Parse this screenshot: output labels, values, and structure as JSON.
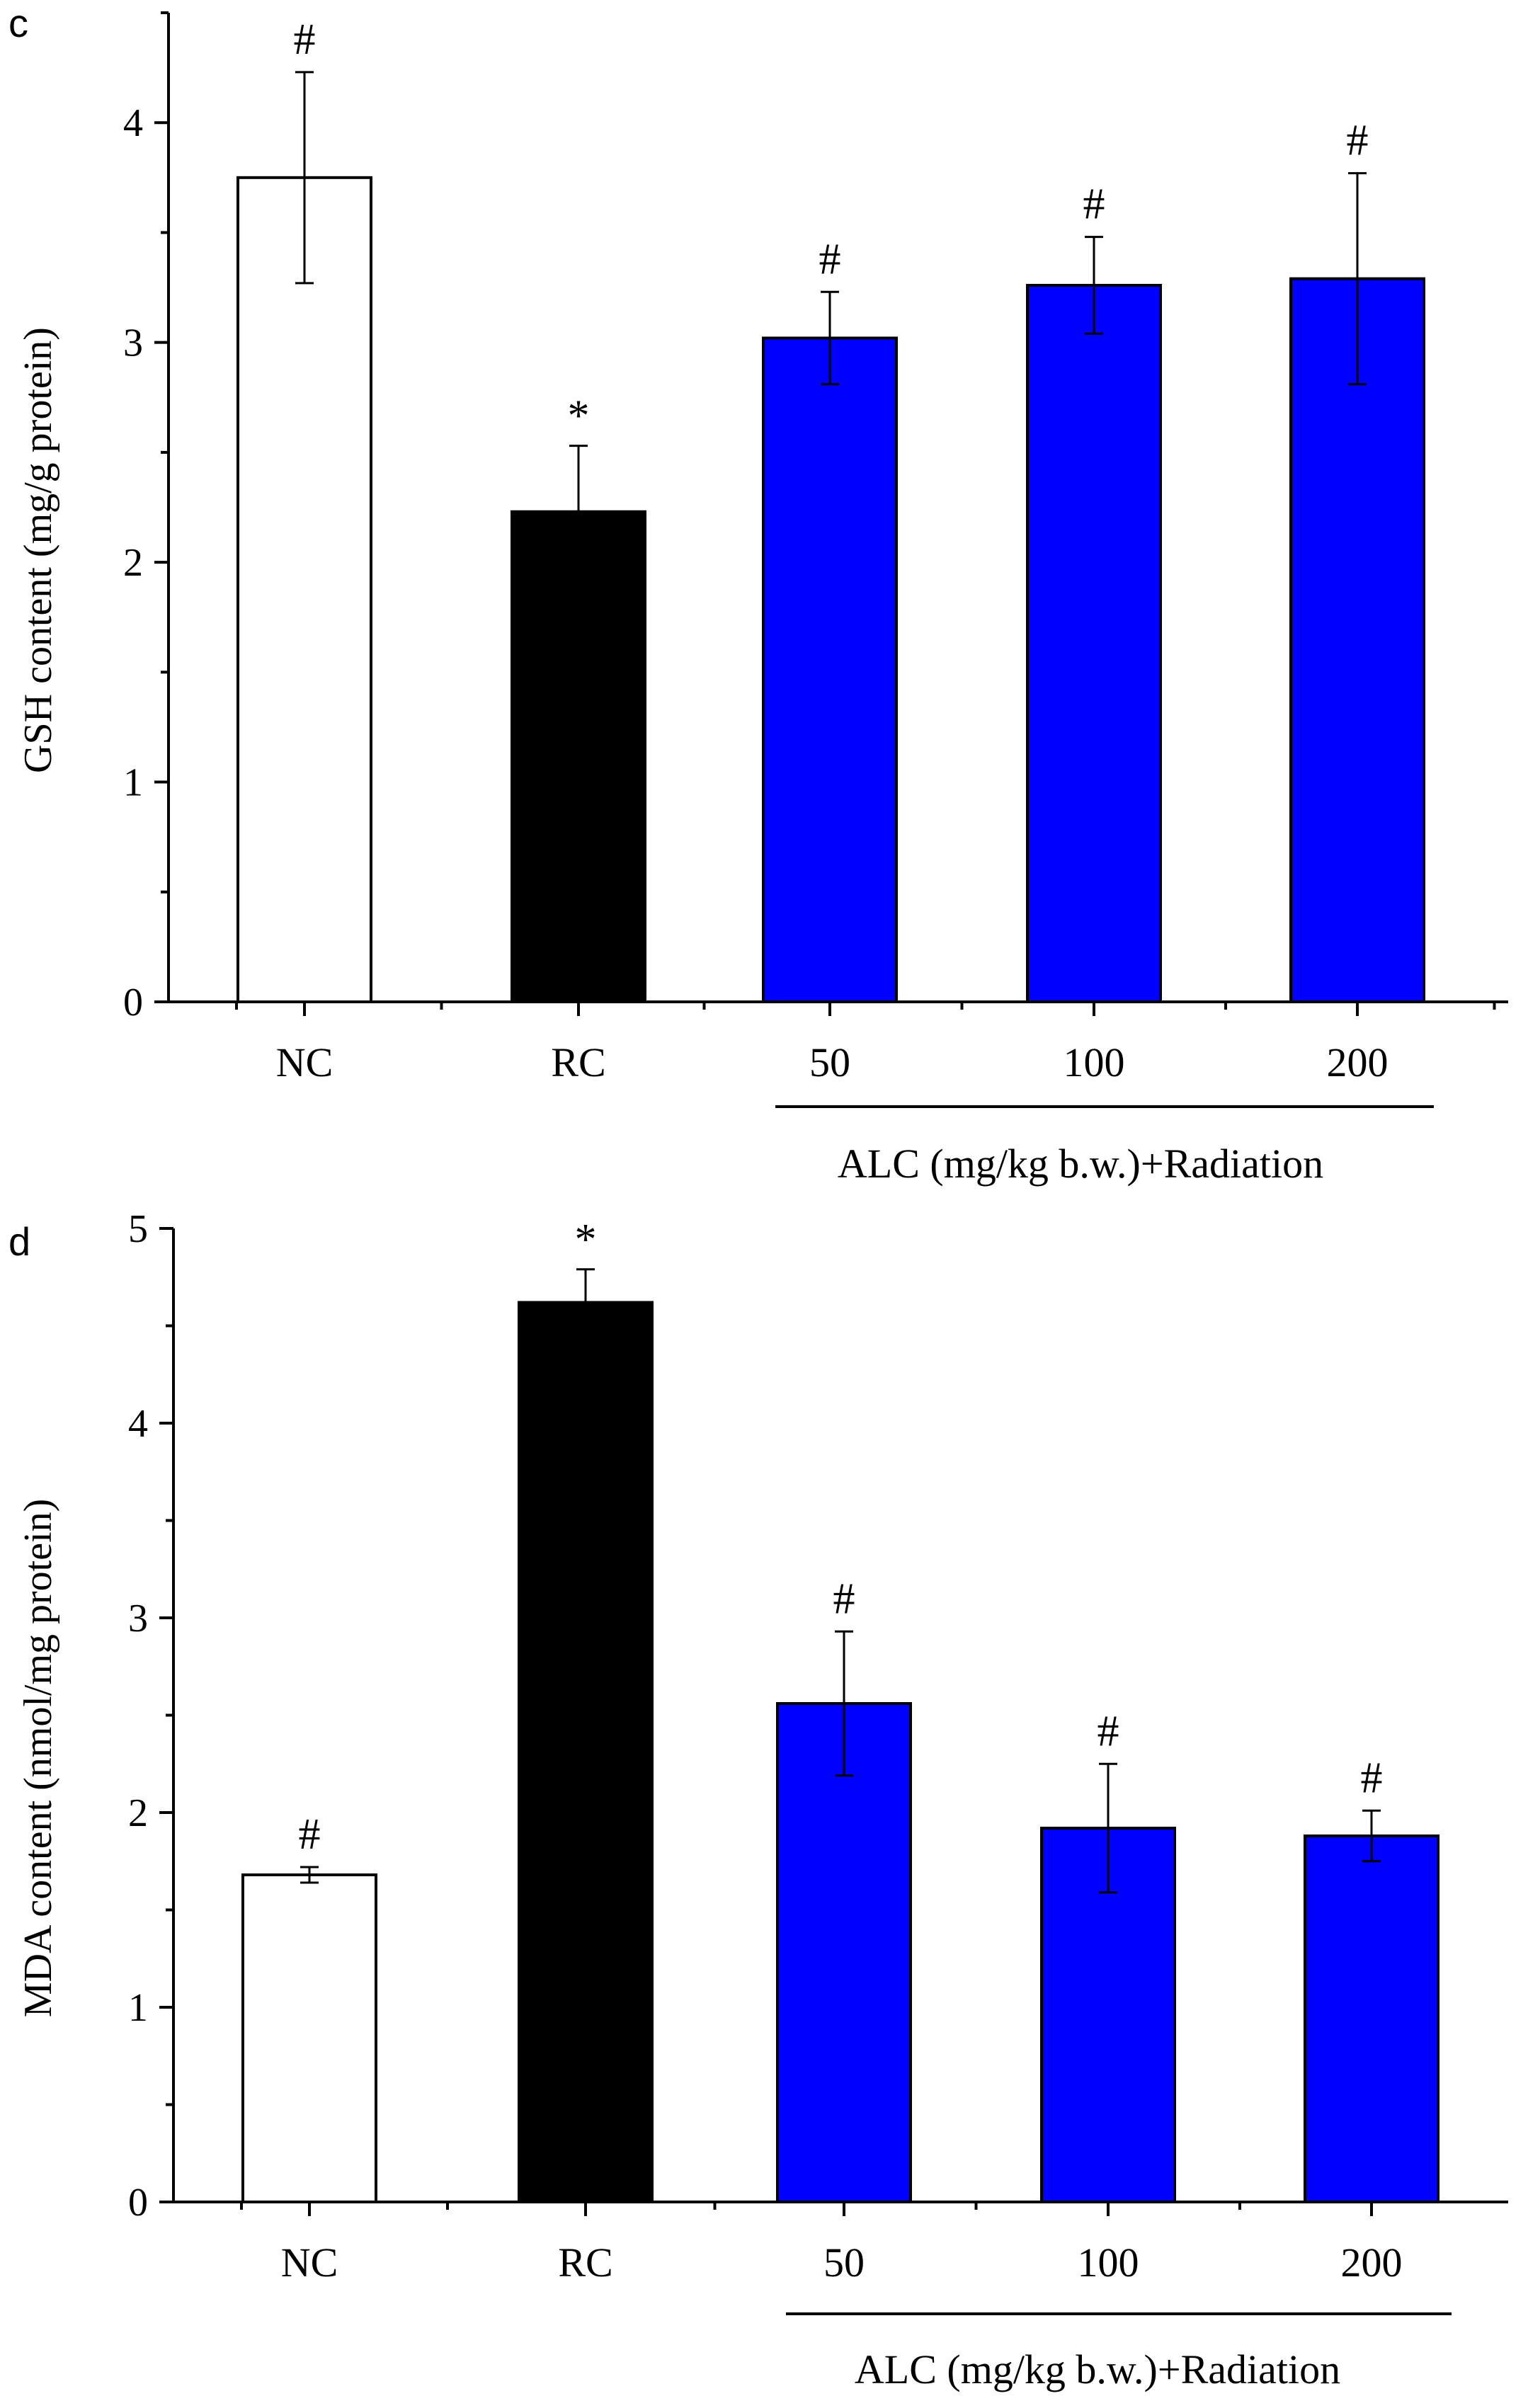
{
  "chart_data": [
    {
      "panel": "c",
      "type": "bar",
      "categories": [
        "NC",
        "RC",
        "50",
        "100",
        "200"
      ],
      "values": [
        3.75,
        2.23,
        3.02,
        3.26,
        3.29
      ],
      "errors": [
        0.48,
        0.3,
        0.21,
        0.22,
        0.48
      ],
      "annotations": [
        "#",
        "*",
        "#",
        "#",
        "#"
      ],
      "bar_colors": [
        "#ffffff",
        "#000000",
        "#0000ff",
        "#0000ff",
        "#0000ff"
      ],
      "ylabel": "GSH content (mg/g protein)",
      "group_label": "ALC (mg/kg b.w.)+Radiation",
      "ylim": [
        0,
        4.5
      ],
      "yticks": [
        "0",
        "1",
        "2",
        "3",
        "4"
      ]
    },
    {
      "panel": "d",
      "type": "bar",
      "categories": [
        "NC",
        "RC",
        "50",
        "100",
        "200"
      ],
      "values": [
        1.68,
        4.62,
        2.56,
        1.92,
        1.88
      ],
      "errors": [
        0.04,
        0.17,
        0.37,
        0.33,
        0.13
      ],
      "annotations": [
        "#",
        "*",
        "#",
        "#",
        "#"
      ],
      "bar_colors": [
        "#ffffff",
        "#000000",
        "#0000ff",
        "#0000ff",
        "#0000ff"
      ],
      "ylabel": "MDA content (nmol/mg protein)",
      "group_label": "ALC (mg/kg b.w.)+Radiation",
      "ylim": [
        0,
        5
      ],
      "yticks": [
        "0",
        "1",
        "2",
        "3",
        "4",
        "5"
      ]
    }
  ]
}
